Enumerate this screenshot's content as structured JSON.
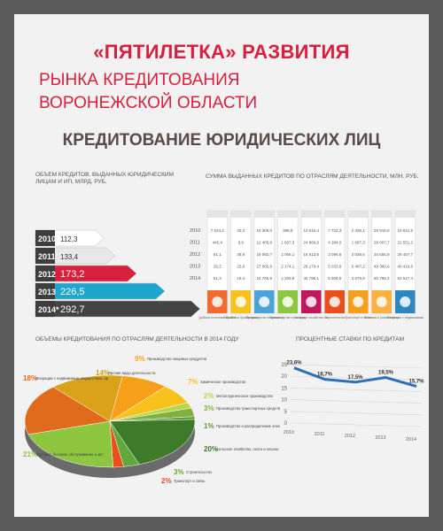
{
  "title_line1": "«ПЯТИЛЕТКА» РАЗВИТИЯ",
  "title_line2": "РЫНКА КРЕДИТОВАНИЯ",
  "title_line3": "ВОРОНЕЖСКОЙ ОБЛАСТИ",
  "subtitle": "КРЕДИТОВАНИЕ ЮРИДИЧЕСКИХ ЛИЦ",
  "colors": {
    "accent": "#d81f3d",
    "title_dark": "#5a4a48",
    "frame": "#5a5a5a",
    "background": "#f2f2f2"
  },
  "chart_data": [
    {
      "type": "bar",
      "title": "ОБЪЕМ КРЕДИТОВ, ВЫДАННЫХ ЮРИДИЧЕСКИМ ЛИЦАМ И ИП, МЛРД. РУБ.",
      "categories": [
        "2010",
        "2011",
        "2012",
        "2013",
        "2014*"
      ],
      "values": [
        112.3,
        133.4,
        173.2,
        226.5,
        292.7
      ],
      "value_labels": [
        "112,3",
        "133,4",
        "173,2",
        "226,5",
        "292,7"
      ],
      "colors": [
        "#ffffff",
        "#e8e8e8",
        "#d81f3d",
        "#1ea6cf",
        "#444444"
      ],
      "orientation": "horizontal"
    },
    {
      "type": "table",
      "title": "СУММА ВЫДАННЫХ КРЕДИТОВ ПО ОТРАСЛЯМ ДЕЯТЕЛЬНОСТИ, МЛН. РУБ.",
      "years": [
        "2010",
        "2011",
        "2012",
        "2013",
        "2014"
      ],
      "columns": [
        {
          "name": "Добыча полезных ископаемых",
          "color": "#f26a2e",
          "icon": "mining-icon",
          "values": [
            "7 534,2",
            "445,4",
            "61,1",
            "25,3",
            "61,3"
          ]
        },
        {
          "name": "Обработка производств",
          "color": "#f6c21b",
          "icon": "factory-icon",
          "values": [
            "25,3",
            "8,9",
            "35,8",
            "25,8",
            "19,4"
          ]
        },
        {
          "name": "Производство пищевых продуктов, включая напитки и табак",
          "color": "#4aa3d9",
          "icon": "food-icon",
          "values": [
            "15 305,0",
            "12 465,8",
            "19 082,7",
            "27 065,9",
            "24 765,8"
          ]
        },
        {
          "name": "Производство и распределение электроэнергии, газа и воды",
          "color": "#8dc63f",
          "icon": "energy-icon",
          "values": [
            "286,8",
            "1 697,3",
            "1 066,1",
            "2 174,1",
            "1 293,8"
          ]
        },
        {
          "name": "Сельское хозяйство, охота и лесное хозяйство",
          "color": "#c2185b",
          "icon": "agriculture-icon",
          "values": [
            "10 615,4",
            "24 866,6",
            "16 513,6",
            "28 179,4",
            "45 795,1"
          ]
        },
        {
          "name": "Строительство",
          "color": "#e94e1b",
          "icon": "construction-icon",
          "values": [
            "7 722,3",
            "4 284,0",
            "3 096,6",
            "5 033,9",
            "5 508,9"
          ]
        },
        {
          "name": "Транспорт и связь",
          "color": "#f6a01a",
          "icon": "transport-icon",
          "values": [
            "2 336,1",
            "1 687,3",
            "3 036,6",
            "5 497,2",
            "3 679,9"
          ]
        },
        {
          "name": "Оптовая и розничная торговля, бытовое обслуживание и автоторговля",
          "color": "#fbb040",
          "icon": "trade-icon",
          "values": [
            "29 916,0",
            "29 007,7",
            "34 655,9",
            "49 380,9",
            "60 795,3"
          ]
        },
        {
          "name": "Операции с недвижимым имуществом, аренда и предоставление услуг",
          "color": "#2e86c1",
          "icon": "realty-icon",
          "values": [
            "19 612,5",
            "21 551,2",
            "28 457,7",
            "40 416,8",
            "52 517,4"
          ]
        }
      ]
    },
    {
      "type": "pie",
      "title": "ОБЪЕМЫ КРЕДИТОВАНИЯ ПО ОТРАСЛЯМ ДЕЯТЕЛЬНОСТИ В 2014 ГОДУ",
      "slices": [
        {
          "label": "Производство пищевых продуктов",
          "value": 9,
          "display": "9%",
          "color": "#f6a01a"
        },
        {
          "label": "Химическое производство",
          "value": 7,
          "display": "7%",
          "color": "#f6c21b"
        },
        {
          "label": "Металлургическое производство",
          "value": 2,
          "display": "2%",
          "color": "#b6d74b"
        },
        {
          "label": "Производство транспортных средств, машин и оборудования",
          "value": 3,
          "display": "3%",
          "color": "#7fb13f"
        },
        {
          "label": "Производство и распределение электроэнергии, газа и воды",
          "value": 1,
          "display": "1%",
          "color": "#5e9a38"
        },
        {
          "label": "Сельское хозяйство, охота и лесное хозяйство",
          "value": 20,
          "display": "20%",
          "color": "#3d7a2a"
        },
        {
          "label": "Строительство",
          "value": 3,
          "display": "3%",
          "color": "#5fa83a"
        },
        {
          "label": "Транспорт и связь",
          "value": 2,
          "display": "2%",
          "color": "#e94e1b"
        },
        {
          "label": "Торговля, бытовое обслуживание и авторемонт",
          "value": 21,
          "display": "21%",
          "color": "#8dc63f"
        },
        {
          "label": "Операции с недвижимым имуществом, аренда и предоставление услуг",
          "value": 18,
          "display": "18%",
          "color": "#e06b1a"
        },
        {
          "label": "Прочие виды деятельности",
          "value": 14,
          "display": "14%",
          "color": "#d9a21a"
        }
      ]
    },
    {
      "type": "line",
      "title": "ПРОЦЕНТНЫЕ СТАВКИ ПО КРЕДИТАМ",
      "x": [
        "2010",
        "2011",
        "2012",
        "2013",
        "2014"
      ],
      "y": [
        23.6,
        18.7,
        17.5,
        19.5,
        15.7
      ],
      "value_labels": [
        "23,6%",
        "18,7%",
        "17,5%",
        "19,5%",
        "15,7%"
      ],
      "yticks": [
        "0",
        "5",
        "10",
        "15",
        "20",
        "25"
      ],
      "ylim": [
        0,
        25
      ],
      "color": "#2e6fb5"
    }
  ]
}
